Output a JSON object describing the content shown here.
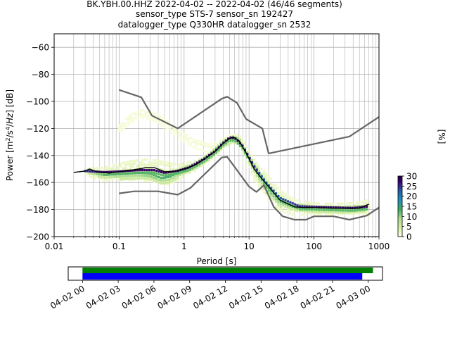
{
  "chart_data": {
    "type": "heatmap",
    "title_lines": [
      "BK.YBH.00.HHZ   2022-04-02 -- 2022-04-02  (46/46 segments)",
      "sensor_type STS-7 sensor_sn 192427",
      "datalogger_type Q330HR datalogger_sn 2532"
    ],
    "xlabel": "Period [s]",
    "ylabel": "Power [m²/s⁴/Hz] [dB]",
    "x_scale": "log",
    "xlim": [
      0.01,
      1000
    ],
    "ylim": [
      -200,
      -50
    ],
    "x_ticks": [
      {
        "value": 0.01,
        "label": "0.01"
      },
      {
        "value": 0.1,
        "label": "0.1"
      },
      {
        "value": 1,
        "label": "1"
      },
      {
        "value": 10,
        "label": "10"
      },
      {
        "value": 100,
        "label": "100"
      },
      {
        "value": 1000,
        "label": "1000"
      }
    ],
    "y_ticks": [
      {
        "value": -60,
        "label": "−60"
      },
      {
        "value": -80,
        "label": "−80"
      },
      {
        "value": -100,
        "label": "−100"
      },
      {
        "value": -120,
        "label": "−120"
      },
      {
        "value": -140,
        "label": "−140"
      },
      {
        "value": -160,
        "label": "−160"
      },
      {
        "value": -180,
        "label": "−180"
      },
      {
        "value": -200,
        "label": "−200"
      }
    ],
    "grid": true,
    "colorbar": {
      "label": "[%]",
      "range": [
        0,
        30
      ],
      "ticks": [
        {
          "value": 0,
          "label": "0"
        },
        {
          "value": 5,
          "label": "5"
        },
        {
          "value": 10,
          "label": "10"
        },
        {
          "value": 15,
          "label": "15"
        },
        {
          "value": 20,
          "label": "20"
        },
        {
          "value": 25,
          "label": "25"
        },
        {
          "value": 30,
          "label": "30"
        }
      ]
    },
    "noise_model_high": {
      "x": [
        0.1,
        0.22,
        0.32,
        0.8,
        3.8,
        4.6,
        6.5,
        9,
        16,
        20,
        350,
        1000
      ],
      "y": [
        -91.5,
        -97,
        -110.5,
        -120,
        -98,
        -96.5,
        -101,
        -113,
        -120,
        -138.5,
        -126,
        -111.5
      ]
    },
    "noise_model_low": {
      "x": [
        0.1,
        0.17,
        0.4,
        0.8,
        1.25,
        3.8,
        4.6,
        5.5,
        10,
        13,
        17,
        24,
        33,
        50,
        75,
        100,
        200,
        350,
        650,
        1000
      ],
      "y": [
        -168,
        -166.5,
        -166.5,
        -169,
        -164,
        -141.5,
        -141,
        -146,
        -163,
        -167,
        -162,
        -178,
        -185,
        -187.5,
        -187.5,
        -185,
        -185,
        -187.5,
        -184.5,
        -178.5
      ]
    },
    "mode_curve": {
      "x": [
        0.02,
        0.03,
        0.035,
        0.045,
        0.07,
        0.12,
        0.2,
        0.26,
        0.35,
        0.5,
        0.7,
        1,
        1.5,
        2,
        3,
        4,
        5,
        5.8,
        7,
        9,
        12,
        15,
        20,
        30,
        50,
        70,
        100,
        200,
        500,
        700
      ],
      "y": [
        -152.5,
        -151.5,
        -150,
        -152,
        -153,
        -151.5,
        -150,
        -149,
        -149,
        -152,
        -152,
        -150,
        -147,
        -143,
        -137,
        -131,
        -127.5,
        -126.5,
        -129,
        -138,
        -150,
        -156,
        -163,
        -173,
        -178,
        -178.5,
        -178.5,
        -179,
        -179,
        -176
      ]
    },
    "density_bands": [
      {
        "x": [
          0.03,
          0.04,
          0.06,
          0.1,
          0.15,
          0.25,
          0.4,
          0.6,
          0.8,
          1,
          1.5,
          2,
          3,
          4,
          5.5,
          7,
          9,
          12,
          15,
          20,
          30,
          50,
          100,
          200,
          500,
          700
        ],
        "center": [
          -151,
          -153,
          -153,
          -151.5,
          -150.5,
          -150,
          -151,
          -153,
          -152,
          -150,
          -147,
          -143,
          -137,
          -131,
          -127,
          -128,
          -137,
          -150,
          -156,
          -163,
          -173,
          -178,
          -178.5,
          -179,
          -179,
          -178
        ],
        "spread": [
          2,
          4,
          5,
          6,
          7,
          8,
          8,
          8,
          6,
          5,
          4,
          3,
          3,
          3,
          3,
          4,
          6,
          8,
          8,
          9,
          8,
          6,
          4,
          4,
          5,
          6
        ],
        "percent": 4
      },
      {
        "x": [
          0.035,
          0.06,
          0.1,
          0.2,
          0.3,
          0.45,
          0.6,
          0.8,
          1,
          1.5,
          2.5,
          4,
          5.5,
          7,
          10,
          14,
          20,
          30,
          50,
          100,
          300,
          600
        ],
        "center": [
          -152,
          -154,
          -154,
          -153,
          -154,
          -157,
          -156,
          -153,
          -151,
          -147,
          -140,
          -131,
          -127,
          -129,
          -142,
          -154,
          -165,
          -174,
          -178,
          -179,
          -179.5,
          -179
        ],
        "spread": [
          1.5,
          2.5,
          3,
          3,
          3.5,
          3,
          3,
          3,
          2.5,
          2,
          2,
          2,
          2,
          2.5,
          3,
          4,
          4,
          3,
          2.5,
          2,
          2,
          2.5
        ],
        "percent": 14
      },
      {
        "x": [
          0.03,
          0.06,
          0.1,
          0.2,
          0.35,
          0.5,
          0.8,
          1.2,
          2,
          3,
          4,
          5,
          6,
          8,
          12,
          18,
          30,
          60,
          150,
          400,
          650
        ],
        "center": [
          -151.5,
          -152.5,
          -152,
          -151,
          -151,
          -153,
          -151.5,
          -149,
          -143,
          -137,
          -131,
          -127,
          -127,
          -133,
          -148,
          -160,
          -172,
          -178,
          -178.5,
          -179,
          -178
        ],
        "spread": [
          0.8,
          1,
          1,
          1,
          1,
          1,
          1,
          1,
          1,
          1,
          1,
          1,
          1,
          1,
          1.2,
          1.5,
          1.5,
          1.2,
          1,
          1,
          1
        ],
        "percent": 28
      }
    ],
    "faint_high_trace": {
      "x": [
        0.1,
        0.15,
        0.25,
        0.4,
        0.6,
        1,
        1.5,
        2.5,
        4,
        5
      ],
      "y": [
        -120,
        -112,
        -108,
        -112,
        -118,
        -126,
        -131,
        -134,
        -130,
        -127
      ],
      "percent": 1.5
    },
    "timeline": {
      "x_ticks": [
        {
          "hours": 0,
          "label": "04-02 00"
        },
        {
          "hours": 3,
          "label": "04-02 03"
        },
        {
          "hours": 6,
          "label": "04-02 06"
        },
        {
          "hours": 9,
          "label": "04-02 09"
        },
        {
          "hours": 12,
          "label": "04-02 12"
        },
        {
          "hours": 15,
          "label": "04-02 15"
        },
        {
          "hours": 18,
          "label": "04-02 18"
        },
        {
          "hours": 21,
          "label": "04-02 21"
        },
        {
          "hours": 24,
          "label": "04-03 00"
        }
      ],
      "range_hours": [
        -1.2,
        25.2
      ],
      "data_available_hours": [
        0,
        24.4
      ],
      "segments_used_hours": [
        0,
        23.5
      ],
      "colors": {
        "available": "#008000",
        "used": "#0000ff"
      }
    },
    "colors": {
      "noise_models": "#666666",
      "mode": "#000000",
      "grid": "#b0b0b0"
    }
  }
}
